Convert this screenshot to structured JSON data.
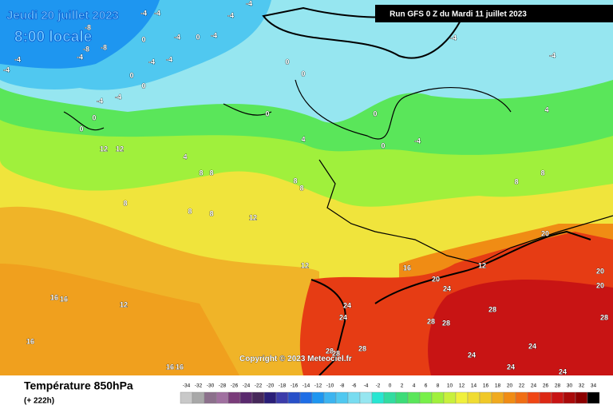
{
  "header": {
    "date": "Jeudi 20 juillet 2023",
    "time": "8:00 locale",
    "run": "Run GFS 0 Z du Mardi 11 juillet 2023"
  },
  "copyright": "Copyright © 2023 Meteociel.fr",
  "footer": {
    "title": "Température 850hPa",
    "lead": "(+ 222h)"
  },
  "scale": {
    "values": [
      -34,
      -32,
      -30,
      -28,
      -26,
      -24,
      -22,
      -20,
      -18,
      -16,
      -14,
      -12,
      -10,
      -8,
      -6,
      -4,
      -2,
      0,
      2,
      4,
      6,
      8,
      10,
      12,
      14,
      16,
      18,
      20,
      22,
      24,
      26,
      28,
      30,
      32,
      34
    ],
    "colors": [
      "#c8c8c8",
      "#a8a8a8",
      "#8c708c",
      "#a070a0",
      "#7a3c7a",
      "#5a2a6e",
      "#46285a",
      "#2a1e78",
      "#3c3caa",
      "#2850c8",
      "#1e6ee6",
      "#1e96f0",
      "#3cb4f0",
      "#50c8f0",
      "#78dcf0",
      "#96e6f0",
      "#28e6d2",
      "#32dca0",
      "#3cdc78",
      "#5ae65a",
      "#78f04a",
      "#a0f03c",
      "#c8f03c",
      "#f0f03c",
      "#f0dc32",
      "#f0c828",
      "#f0aa1e",
      "#f08c14",
      "#f06e14",
      "#f04614",
      "#dc2814",
      "#c81414",
      "#aa0a0a",
      "#8c0000",
      "#000000"
    ]
  },
  "map_labels": [
    -4,
    -4,
    -4,
    -4,
    -4,
    -4,
    -4,
    -4,
    -4,
    -4,
    -4,
    -4,
    -4,
    -4,
    -4,
    -8,
    -8,
    -8,
    0,
    0,
    0,
    0,
    0,
    0,
    0,
    0,
    0,
    0,
    0,
    4,
    4,
    4,
    -4,
    8,
    8,
    8,
    8,
    8,
    8,
    8,
    8,
    8,
    12,
    12,
    12,
    12,
    12,
    12,
    16,
    16,
    16,
    16,
    16,
    16,
    20,
    20,
    20,
    20,
    24,
    24,
    24,
    24,
    24,
    24,
    24,
    28,
    28,
    28,
    28,
    28,
    28,
    28
  ]
}
